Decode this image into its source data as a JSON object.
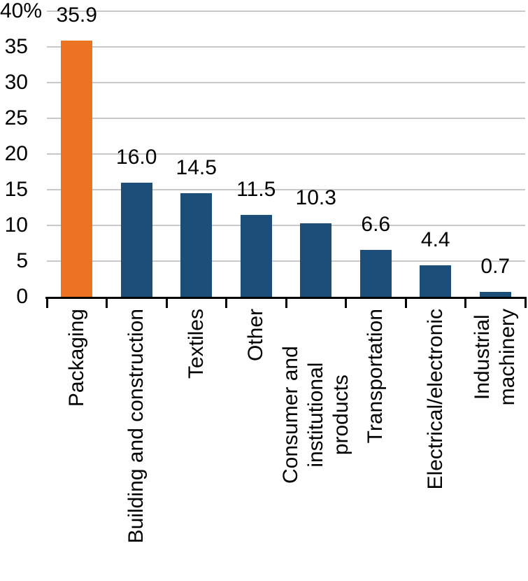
{
  "chart_data": {
    "type": "bar",
    "title": "",
    "xlabel": "",
    "ylabel": "",
    "categories": [
      "Packaging",
      "Building and construction",
      "Textiles",
      "Other",
      "Consumer and institutional\nproducts",
      "Transportation",
      "Electrical/electronic",
      "Industrial machinery"
    ],
    "values": [
      35.9,
      16.0,
      14.5,
      11.5,
      10.3,
      6.6,
      4.4,
      0.7
    ],
    "value_labels": [
      "35.9",
      "16.0",
      "14.5",
      "11.5",
      "10.3",
      "6.6",
      "4.4",
      "0.7"
    ],
    "ylim": [
      0,
      40
    ],
    "ytick_interval": 5,
    "ytick_labels": [
      "0",
      "5",
      "10",
      "15",
      "20",
      "25",
      "30",
      "35",
      "40%"
    ],
    "grid": true,
    "legend": false,
    "bar_colors": [
      "#EC7323",
      "#1B4E79",
      "#1B4E79",
      "#1B4E79",
      "#1B4E79",
      "#1B4E79",
      "#1B4E79",
      "#1B4E79"
    ]
  },
  "colors": {
    "highlight": "#EC7323",
    "series_default": "#1B4E79",
    "gridline": "#C8C8C8",
    "axis": "#000000",
    "text": "#000000"
  }
}
